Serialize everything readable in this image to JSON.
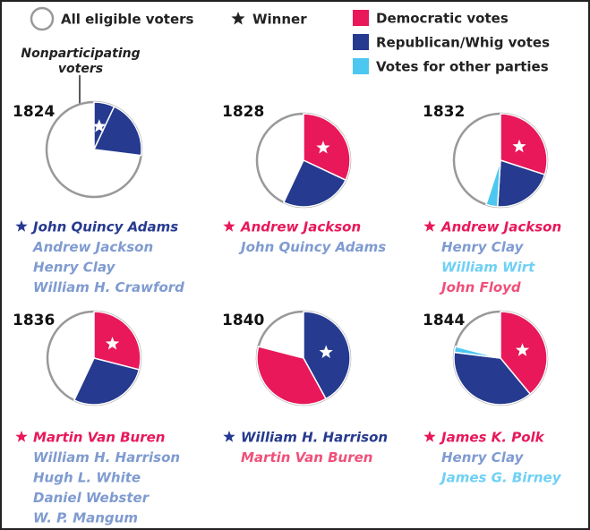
{
  "legend": {
    "outline": "All eligible voters",
    "winner": "Winner",
    "items": [
      {
        "name": "Democratic votes",
        "color": "#e8185a"
      },
      {
        "name": "Republican/Whig votes",
        "color": "#263a8f"
      },
      {
        "name": "Votes for other parties",
        "color": "#4cc8f0"
      }
    ]
  },
  "annotation": "Nonparticipating voters",
  "chart_data": [
    {
      "type": "pie",
      "title": "1824",
      "slices": [
        {
          "value": 7,
          "color": "#263a8f"
        },
        {
          "value": 20,
          "color": "#263a8f"
        }
      ],
      "candidates": [
        {
          "name": "John Quincy Adams",
          "color": "#263a8f",
          "winner": true
        },
        {
          "name": "Andrew Jackson",
          "color": "#7f9bd0"
        },
        {
          "name": "Henry Clay",
          "color": "#7f9bd0"
        },
        {
          "name": "William H. Crawford",
          "color": "#7f9bd0"
        }
      ]
    },
    {
      "type": "pie",
      "title": "1828",
      "slices": [
        {
          "value": 32,
          "color": "#e8185a"
        },
        {
          "value": 25,
          "color": "#263a8f"
        }
      ],
      "candidates": [
        {
          "name": "Andrew Jackson",
          "color": "#e8185a",
          "winner": true
        },
        {
          "name": "John Quincy Adams",
          "color": "#7f9bd0"
        }
      ]
    },
    {
      "type": "pie",
      "title": "1832",
      "slices": [
        {
          "value": 30,
          "color": "#e8185a"
        },
        {
          "value": 21,
          "color": "#263a8f"
        },
        {
          "value": 4,
          "color": "#4cc8f0"
        }
      ],
      "candidates": [
        {
          "name": "Andrew Jackson",
          "color": "#e8185a",
          "winner": true
        },
        {
          "name": "Henry Clay",
          "color": "#7f9bd0"
        },
        {
          "name": "William Wirt",
          "color": "#6fd0f5"
        },
        {
          "name": "John Floyd",
          "color": "#f0507a"
        }
      ]
    },
    {
      "type": "pie",
      "title": "1836",
      "slices": [
        {
          "value": 29,
          "color": "#e8185a"
        },
        {
          "value": 28,
          "color": "#263a8f"
        }
      ],
      "candidates": [
        {
          "name": "Martin Van Buren",
          "color": "#e8185a",
          "winner": true
        },
        {
          "name": "William H. Harrison",
          "color": "#7f9bd0"
        },
        {
          "name": "Hugh L. White",
          "color": "#7f9bd0"
        },
        {
          "name": "Daniel Webster",
          "color": "#7f9bd0"
        },
        {
          "name": "W. P. Mangum",
          "color": "#7f9bd0"
        }
      ]
    },
    {
      "type": "pie",
      "title": "1840",
      "slices": [
        {
          "value": 42,
          "color": "#263a8f"
        },
        {
          "value": 37,
          "color": "#e8185a"
        }
      ],
      "candidates": [
        {
          "name": "William H. Harrison",
          "color": "#263a8f",
          "winner": true
        },
        {
          "name": "Martin Van Buren",
          "color": "#f0507a"
        }
      ]
    },
    {
      "type": "pie",
      "title": "1844",
      "slices": [
        {
          "value": 39,
          "color": "#e8185a"
        },
        {
          "value": 38,
          "color": "#263a8f"
        },
        {
          "value": 2,
          "color": "#4cc8f0"
        }
      ],
      "candidates": [
        {
          "name": "James K. Polk",
          "color": "#e8185a",
          "winner": true
        },
        {
          "name": "Henry Clay",
          "color": "#7f9bd0"
        },
        {
          "name": "James G. Birney",
          "color": "#6fd0f5"
        }
      ]
    }
  ]
}
